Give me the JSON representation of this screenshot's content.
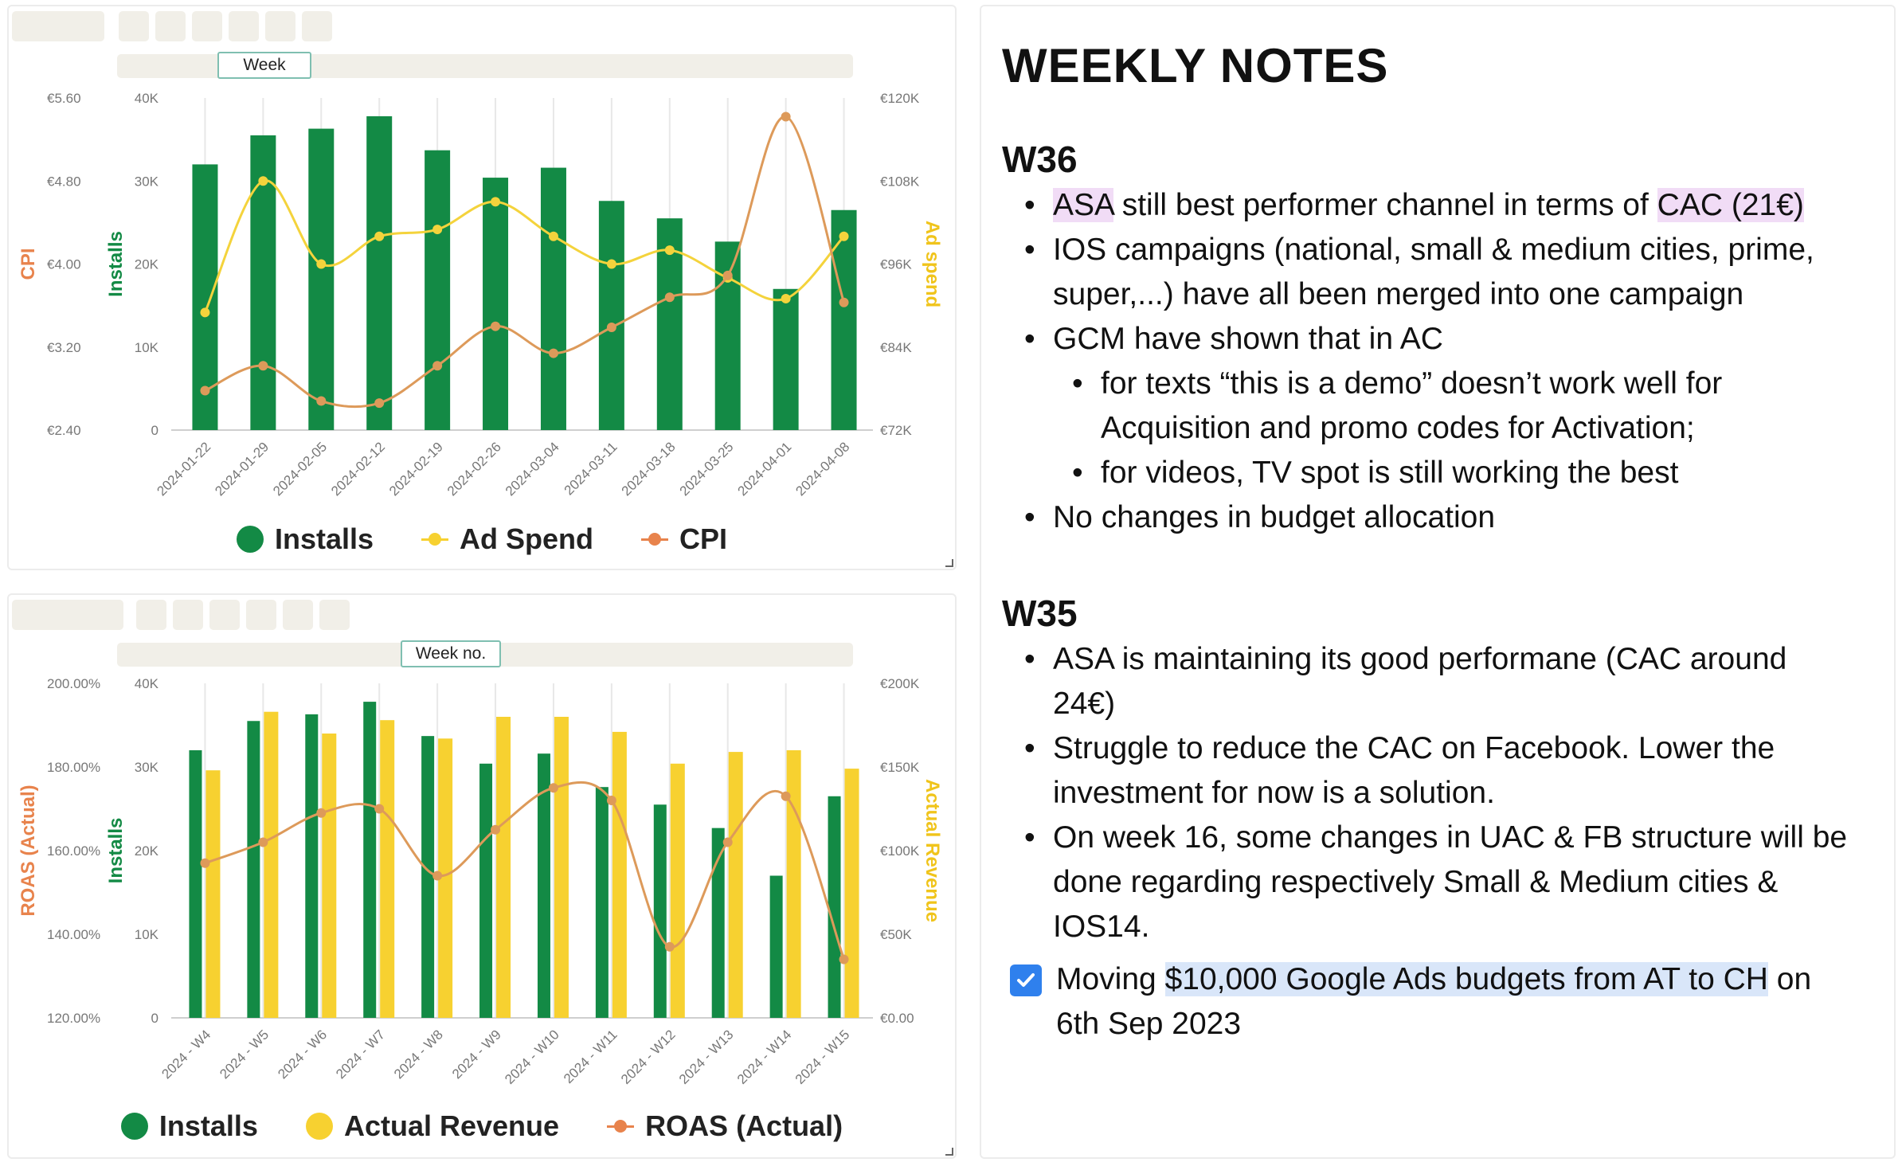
{
  "colors": {
    "green": "#138a45",
    "yellow": "#f7d130",
    "orange": "#e8834c",
    "grid": "#e8e8e8",
    "tick": "#777777"
  },
  "chart1": {
    "filter_label": "Week",
    "legend": {
      "installs": "Installs",
      "adspend": "Ad Spend",
      "cpi": "CPI"
    }
  },
  "chart2": {
    "filter_label": "Week no.",
    "legend": {
      "installs": "Installs",
      "revenue": "Actual Revenue",
      "roas": "ROAS (Actual)"
    }
  },
  "chart_data": [
    {
      "type": "bar",
      "title": "",
      "categories": [
        "2024-01-22",
        "2024-01-29",
        "2024-02-05",
        "2024-02-12",
        "2024-02-19",
        "2024-02-26",
        "2024-03-04",
        "2024-03-11",
        "2024-03-18",
        "2024-03-25",
        "2024-04-01",
        "2024-04-08"
      ],
      "series": [
        {
          "name": "Installs",
          "type": "bar",
          "axis": "left-inner",
          "values": [
            32000,
            35500,
            36300,
            37800,
            33700,
            30400,
            31600,
            27600,
            25500,
            22700,
            17000,
            26500
          ]
        },
        {
          "name": "Ad Spend",
          "type": "line",
          "axis": "right",
          "values": [
            89000,
            108000,
            96000,
            100000,
            101000,
            105000,
            100000,
            96000,
            98000,
            94000,
            91000,
            100000
          ]
        },
        {
          "name": "CPI",
          "type": "line",
          "axis": "left-outer",
          "values": [
            2.78,
            3.02,
            2.68,
            2.66,
            3.02,
            3.4,
            3.14,
            3.39,
            3.68,
            3.89,
            5.42,
            3.63
          ]
        }
      ],
      "axes": {
        "installs": {
          "label": "Installs",
          "range": [
            0,
            40000
          ],
          "ticks": [
            "0",
            "10K",
            "20K",
            "30K",
            "40K"
          ]
        },
        "cpi": {
          "label": "CPI",
          "range": [
            2.4,
            5.6
          ],
          "ticks": [
            "€2.40",
            "€3.20",
            "€4.00",
            "€4.80",
            "€5.60"
          ]
        },
        "adspend": {
          "label": "Ad spend",
          "range": [
            72000,
            120000
          ],
          "ticks": [
            "€72K",
            "€84K",
            "€96K",
            "€108K",
            "€120K"
          ]
        }
      }
    },
    {
      "type": "bar",
      "title": "",
      "categories": [
        "2024 - W4",
        "2024 - W5",
        "2024 - W6",
        "2024 - W7",
        "2024 - W8",
        "2024 - W9",
        "2024 - W10",
        "2024 - W11",
        "2024 - W12",
        "2024 - W13",
        "2024 - W14",
        "2024 - W15"
      ],
      "series": [
        {
          "name": "Installs",
          "type": "bar",
          "axis": "left-inner",
          "values": [
            32000,
            35500,
            36300,
            37800,
            33700,
            30400,
            31600,
            27600,
            25500,
            22700,
            17000,
            26500
          ]
        },
        {
          "name": "Actual Revenue",
          "type": "bar",
          "axis": "right",
          "values": [
            148000,
            183000,
            170000,
            178000,
            167000,
            180000,
            180000,
            171000,
            152000,
            159000,
            160000,
            149000
          ]
        },
        {
          "name": "ROAS (Actual)",
          "type": "line",
          "axis": "left-outer",
          "values": [
            1.57,
            1.62,
            1.69,
            1.7,
            1.54,
            1.65,
            1.75,
            1.72,
            1.37,
            1.62,
            1.73,
            1.34
          ]
        }
      ],
      "axes": {
        "installs": {
          "label": "Installs",
          "range": [
            0,
            40000
          ],
          "ticks": [
            "0",
            "10K",
            "20K",
            "30K",
            "40K"
          ]
        },
        "roas": {
          "label": "ROAS (Actual)",
          "range": [
            1.2,
            2.0
          ],
          "ticks": [
            "120.00%",
            "140.00%",
            "160.00%",
            "180.00%",
            "200.00%"
          ]
        },
        "revenue": {
          "label": "Actual Revenue",
          "range": [
            0,
            200000
          ],
          "ticks": [
            "€0.00",
            "€50K",
            "€100K",
            "€150K",
            "€200K"
          ]
        }
      }
    }
  ],
  "notes": {
    "title": "WEEKLY NOTES",
    "w36": {
      "heading": "W36",
      "b1_asa": "ASA",
      "b1_mid": " still best performer channel in terms of ",
      "b1_cac": "CAC (21€)",
      "b2_l1": "IOS campaigns (national, small & medium cities, prime,",
      "b2_l2": "super,...) have all been merged into one campaign",
      "b3": "GCM have shown that in AC",
      "b3a_l1": "for texts “this is a demo” doesn’t work well for",
      "b3a_l2": "Acquisition and promo codes for Activation;",
      "b3b": "for videos, TV spot is still working the best",
      "b4": "No changes in budget allocation"
    },
    "w35": {
      "heading": "W35",
      "b1_l1": "ASA is maintaining its good performane (CAC around",
      "b1_l2": "24€)",
      "b2_l1": "Struggle to reduce the CAC on Facebook. Lower the",
      "b2_l2": "investment for now is a solution.",
      "b3_l1": "On week 16, some changes in UAC & FB structure will be",
      "b3_l2": "done regarding respectively Small & Medium cities &",
      "b3_l3": "IOS14.",
      "todo_pre": "Moving ",
      "todo_hl": "$10,000 Google Ads budgets from AT to CH",
      "todo_post": " on",
      "todo_l2": "6th  Sep 2023",
      "todo_checked": true
    }
  }
}
